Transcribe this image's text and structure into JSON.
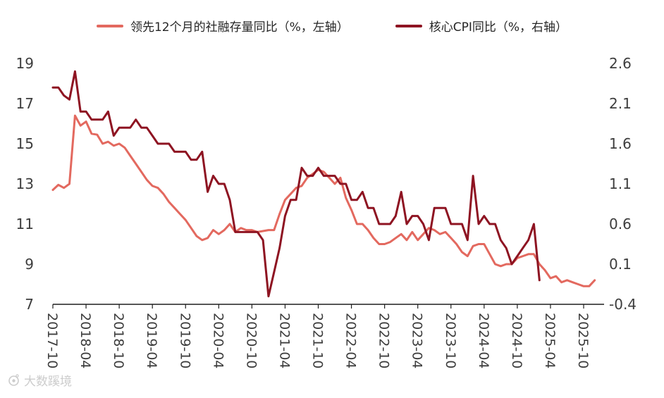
{
  "legend": [
    {
      "label": "领先12个月的社融存量同比（%，左轴）",
      "color": "#e3695f"
    },
    {
      "label": "核心CPI同比（%，右轴）",
      "color": "#8e1422"
    }
  ],
  "watermark": {
    "text": "大数蹊境"
  },
  "colors": {
    "axis_text": "#3d3d3d",
    "axis_line": "#1f1f1f",
    "watermark": "#cccccc"
  },
  "chart_data": {
    "type": "line",
    "title": "",
    "x_start_month": "2017-10",
    "x_ticks": [
      "2017-10",
      "2018-04",
      "2018-10",
      "2019-04",
      "2019-10",
      "2020-04",
      "2020-10",
      "2021-04",
      "2021-10",
      "2022-04",
      "2022-10",
      "2023-04",
      "2023-10",
      "2024-04",
      "2024-10",
      "2025-04",
      "2025-10"
    ],
    "months_per_tick": 6,
    "grid": false,
    "legend_position": "top",
    "left_axis": {
      "min": 7,
      "max": 19,
      "ticks": [
        19,
        17,
        15,
        13,
        11,
        9,
        7
      ]
    },
    "right_axis": {
      "min": -0.4,
      "max": 2.6,
      "ticks": [
        2.6,
        2.1,
        1.6,
        1.1,
        0.6,
        0.1,
        -0.4
      ]
    },
    "series": [
      {
        "name": "领先12个月的社融存量同比（%，左轴）",
        "axis": "left",
        "color": "#e3695f",
        "start": "2017-10",
        "values": [
          12.7,
          12.95,
          12.8,
          13.0,
          16.4,
          15.9,
          16.1,
          15.5,
          15.45,
          15.0,
          15.1,
          14.9,
          15.0,
          14.8,
          14.4,
          14.0,
          13.6,
          13.2,
          12.9,
          12.8,
          12.5,
          12.1,
          11.8,
          11.5,
          11.2,
          10.8,
          10.4,
          10.2,
          10.3,
          10.7,
          10.5,
          10.7,
          11.0,
          10.6,
          10.8,
          10.7,
          10.7,
          10.6,
          10.65,
          10.7,
          10.7,
          11.5,
          12.2,
          12.5,
          12.8,
          12.9,
          13.3,
          13.5,
          13.7,
          13.6,
          13.3,
          13.0,
          13.3,
          12.3,
          11.7,
          11.0,
          11.0,
          10.7,
          10.3,
          10.0,
          10.0,
          10.1,
          10.3,
          10.5,
          10.2,
          10.6,
          10.2,
          10.5,
          10.8,
          10.7,
          10.5,
          10.6,
          10.3,
          10.0,
          9.6,
          9.4,
          9.9,
          10.0,
          10.0,
          9.5,
          9.0,
          8.9,
          9.0,
          9.0,
          9.3,
          9.4,
          9.5,
          9.5,
          9.0,
          8.7,
          8.3,
          8.4,
          8.1,
          8.2,
          8.1,
          8.0,
          7.9,
          7.9,
          8.2
        ]
      },
      {
        "name": "核心CPI同比（%，右轴）",
        "axis": "right",
        "color": "#8e1422",
        "start": "2017-10",
        "values": [
          2.3,
          2.3,
          2.2,
          2.15,
          2.5,
          2.0,
          2.0,
          1.9,
          1.9,
          1.9,
          2.0,
          1.7,
          1.8,
          1.8,
          1.8,
          1.9,
          1.8,
          1.8,
          1.7,
          1.6,
          1.6,
          1.6,
          1.5,
          1.5,
          1.5,
          1.4,
          1.4,
          1.5,
          1.0,
          1.2,
          1.1,
          1.1,
          0.9,
          0.5,
          0.5,
          0.5,
          0.5,
          0.5,
          0.4,
          -0.3,
          0.0,
          0.3,
          0.7,
          0.9,
          0.9,
          1.3,
          1.2,
          1.2,
          1.3,
          1.2,
          1.2,
          1.2,
          1.1,
          1.1,
          0.9,
          0.9,
          1.0,
          0.8,
          0.8,
          0.6,
          0.6,
          0.6,
          0.7,
          1.0,
          0.6,
          0.7,
          0.7,
          0.6,
          0.4,
          0.8,
          0.8,
          0.8,
          0.6,
          0.6,
          0.6,
          0.4,
          1.2,
          0.6,
          0.7,
          0.6,
          0.6,
          0.4,
          0.3,
          0.1,
          0.2,
          0.3,
          0.4,
          0.6,
          -0.1
        ]
      }
    ]
  }
}
